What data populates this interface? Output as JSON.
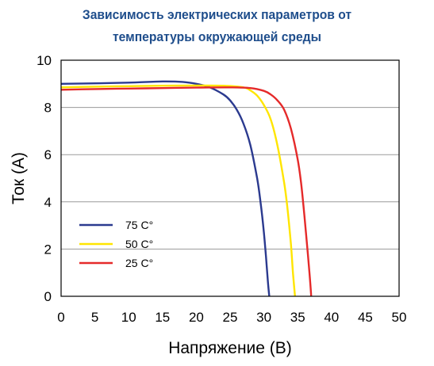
{
  "chart_data": {
    "type": "line",
    "title_line1": "Зависимость электрических параметров от",
    "title_line2": "температуры окружающей среды",
    "xlabel": "Напряжение (В)",
    "ylabel": "Ток (А)",
    "xlim": [
      0,
      50
    ],
    "ylim": [
      0,
      10
    ],
    "xticks": [
      0,
      5,
      10,
      15,
      20,
      25,
      30,
      35,
      40,
      45,
      50
    ],
    "yticks": [
      0,
      2,
      4,
      6,
      8,
      10
    ],
    "grid": "horizontal",
    "legend_position": "bottom-left",
    "series": [
      {
        "name": "75 C°",
        "color": "#2b3a8f",
        "x": [
          0,
          5,
          10,
          15,
          18,
          20,
          22,
          24,
          25,
          26,
          27,
          28,
          29,
          29.5,
          30,
          30.3,
          30.6,
          30.8
        ],
        "y": [
          9.0,
          9.02,
          9.05,
          9.1,
          9.08,
          9.0,
          8.85,
          8.55,
          8.3,
          7.9,
          7.3,
          6.4,
          5.0,
          4.0,
          2.7,
          1.7,
          0.6,
          0
        ]
      },
      {
        "name": "50 C°",
        "color": "#ffe500",
        "x": [
          0,
          5,
          10,
          15,
          20,
          24,
          27,
          28,
          29,
          30,
          31,
          32,
          33,
          33.5,
          34,
          34.3,
          34.6
        ],
        "y": [
          8.85,
          8.88,
          8.9,
          8.92,
          8.93,
          8.92,
          8.85,
          8.72,
          8.5,
          8.1,
          7.5,
          6.4,
          4.8,
          3.7,
          2.2,
          1.0,
          0
        ]
      },
      {
        "name": "25 C°",
        "color": "#e52a2a",
        "x": [
          0,
          5,
          10,
          15,
          20,
          25,
          28,
          30,
          31,
          32,
          33,
          34,
          35,
          35.5,
          36,
          36.5,
          36.8,
          37
        ],
        "y": [
          8.75,
          8.78,
          8.8,
          8.82,
          8.84,
          8.85,
          8.82,
          8.7,
          8.55,
          8.3,
          7.9,
          7.1,
          5.8,
          4.8,
          3.4,
          1.8,
          0.8,
          0
        ]
      }
    ]
  }
}
